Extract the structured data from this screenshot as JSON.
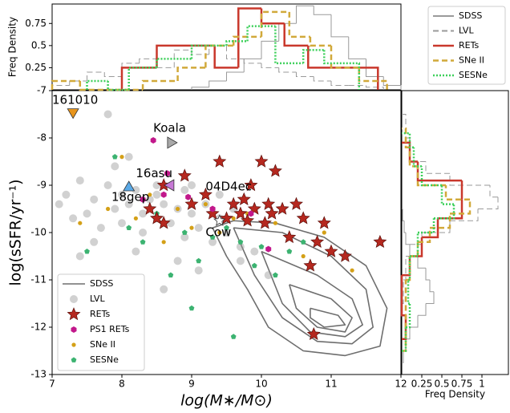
{
  "chart_data": [
    {
      "type": "scatter",
      "x_label": "log(M∗/M⊙)",
      "y_label": "log(sSFR/yr⁻¹)",
      "xlim": [
        7,
        12
      ],
      "ylim": [
        -13,
        -7
      ],
      "xticks": [
        7,
        8,
        9,
        10,
        11,
        12
      ],
      "yticks": [
        -13,
        -12,
        -11,
        -10,
        -9,
        -8,
        -7
      ],
      "legend": "lower left",
      "series": [
        {
          "name": "SDSS",
          "color": "#6e6e6e",
          "marker": "line",
          "contours": [
            {
              "x": [
                9.3,
                9.6,
                10.2,
                10.9,
                11.5,
                11.8,
                11.7,
                11.2,
                10.6,
                10.1,
                9.8,
                9.5,
                9.3
              ],
              "y": [
                -9.9,
                -9.75,
                -9.8,
                -10.1,
                -10.7,
                -11.6,
                -12.4,
                -12.6,
                -12.5,
                -12.0,
                -11.2,
                -10.5,
                -9.9
              ]
            },
            {
              "x": [
                9.6,
                10.3,
                11.0,
                11.5,
                11.6,
                11.3,
                10.8,
                10.3,
                9.9,
                9.6
              ],
              "y": [
                -9.9,
                -10.0,
                -10.5,
                -11.2,
                -12.0,
                -12.35,
                -12.3,
                -11.8,
                -10.9,
                -9.9
              ]
            },
            {
              "x": [
                10.0,
                10.8,
                11.3,
                11.45,
                11.2,
                10.7,
                10.3,
                10.0
              ],
              "y": [
                -10.4,
                -10.9,
                -11.4,
                -11.95,
                -12.2,
                -12.1,
                -11.5,
                -10.4
              ]
            },
            {
              "x": [
                10.4,
                11.0,
                11.3,
                11.2,
                10.8,
                10.5,
                10.4
              ],
              "y": [
                -11.1,
                -11.4,
                -11.8,
                -12.1,
                -12.0,
                -11.6,
                -11.1
              ]
            },
            {
              "x": [
                10.7,
                11.1,
                11.2,
                10.9,
                10.7,
                10.7
              ],
              "y": [
                -11.6,
                -11.75,
                -11.95,
                -12.0,
                -11.8,
                -11.6
              ]
            }
          ]
        },
        {
          "name": "LVL",
          "color": "#9a9a9a",
          "marker": "circle",
          "x": [
            7.2,
            7.4,
            7.5,
            7.6,
            7.7,
            7.8,
            7.9,
            8.0,
            8.0,
            8.1,
            8.2,
            8.3,
            8.3,
            8.4,
            8.5,
            8.5,
            8.6,
            8.7,
            8.8,
            8.9,
            9.0,
            9.1,
            9.2,
            9.3,
            9.4,
            9.5,
            9.6,
            9.7,
            7.3,
            7.6,
            7.9,
            8.2,
            8.5,
            8.8,
            9.1,
            9.4,
            7.8,
            8.1,
            8.9,
            9.7,
            9.9,
            10.1,
            7.4,
            8.6,
            9.0,
            7.1
          ],
          "y": [
            -9.2,
            -8.9,
            -9.6,
            -9.3,
            -9.9,
            -9.0,
            -9.5,
            -9.2,
            -9.8,
            -9.4,
            -9.1,
            -9.6,
            -10.0,
            -9.3,
            -9.7,
            -9.0,
            -9.4,
            -9.8,
            -9.5,
            -10.1,
            -9.6,
            -9.9,
            -9.4,
            -10.2,
            -9.7,
            -10.0,
            -9.5,
            -10.3,
            -9.7,
            -10.2,
            -8.6,
            -10.4,
            -9.2,
            -10.6,
            -10.8,
            -9.2,
            -7.5,
            -8.4,
            -9.1,
            -10.6,
            -10.4,
            -10.9,
            -10.5,
            -11.2,
            -9.0,
            -9.4
          ]
        },
        {
          "name": "RETs",
          "color": "#b5281f",
          "marker": "star",
          "x": [
            8.4,
            8.6,
            8.6,
            8.9,
            9.0,
            9.2,
            9.3,
            9.4,
            9.5,
            9.6,
            9.7,
            9.75,
            9.8,
            9.85,
            9.9,
            10.0,
            10.05,
            10.1,
            10.15,
            10.2,
            10.3,
            10.4,
            10.5,
            10.6,
            10.8,
            10.9,
            11.0,
            11.2,
            11.7,
            10.7,
            10.75,
            8.5
          ],
          "y": [
            -9.5,
            -9.0,
            -9.8,
            -8.8,
            -9.4,
            -9.2,
            -9.6,
            -8.5,
            -9.7,
            -9.4,
            -9.6,
            -9.3,
            -9.75,
            -9.0,
            -9.5,
            -8.5,
            -9.8,
            -9.4,
            -9.6,
            -8.7,
            -9.5,
            -10.1,
            -9.4,
            -9.7,
            -10.2,
            -9.8,
            -10.4,
            -10.5,
            -10.2,
            -10.7,
            -12.15,
            -9.7
          ]
        },
        {
          "name": "PS1 RETs",
          "color": "#c2188b",
          "marker": "hexagon",
          "x": [
            8.45,
            8.65,
            8.6,
            8.95,
            9.3,
            9.85,
            10.1,
            8.3
          ],
          "y": [
            -8.05,
            -8.75,
            -9.2,
            -9.25,
            -9.5,
            -9.6,
            -10.35,
            -9.3
          ]
        },
        {
          "name": "SNe II",
          "color": "#d4a017",
          "marker": "dot",
          "x": [
            7.4,
            7.8,
            8.0,
            8.2,
            8.4,
            8.6,
            8.8,
            9.0,
            9.2,
            9.4,
            9.6,
            9.8,
            10.0,
            10.2,
            10.4,
            10.6,
            10.9,
            11.3
          ],
          "y": [
            -9.8,
            -9.5,
            -8.4,
            -9.7,
            -9.2,
            -10.2,
            -9.5,
            -9.9,
            -9.4,
            -10.0,
            -9.7,
            -9.6,
            -10.3,
            -9.8,
            -10.1,
            -10.5,
            -10.0,
            -10.8
          ]
        },
        {
          "name": "SESNe",
          "color": "#3cb371",
          "marker": "pentagon",
          "x": [
            7.5,
            7.9,
            8.1,
            8.3,
            8.5,
            8.7,
            8.9,
            9.1,
            9.3,
            9.5,
            9.7,
            9.9,
            10.0,
            10.2,
            10.4,
            10.6,
            9.0,
            9.6
          ],
          "y": [
            -10.4,
            -8.4,
            -9.9,
            -10.2,
            -9.6,
            -10.9,
            -10.0,
            -10.6,
            -10.1,
            -9.9,
            -10.2,
            -10.7,
            -10.3,
            -10.9,
            -10.4,
            -10.2,
            -11.6,
            -12.2
          ]
        }
      ],
      "events": [
        {
          "x": 7.3,
          "y": -7.45,
          "color": "#e8951c",
          "shape": "down"
        },
        {
          "x": 8.7,
          "y": -8.1,
          "color": "#a8a8a8",
          "shape": "right"
        },
        {
          "x": 8.7,
          "y": -9.0,
          "color": "#c77ad6",
          "shape": "left"
        },
        {
          "x": 8.1,
          "y": -9.05,
          "color": "#5aa9e6",
          "shape": "up"
        },
        {
          "x": 9.4,
          "y": -9.75,
          "color": "#ffffff",
          "shape": "star"
        }
      ],
      "annotations": [
        {
          "text": "161010",
          "x": 7.0,
          "y": -7.2
        },
        {
          "text": "Koala",
          "x": 8.45,
          "y": -7.8
        },
        {
          "text": "16asu",
          "x": 8.2,
          "y": -8.75
        },
        {
          "text": "18gep",
          "x": 7.85,
          "y": -9.25
        },
        {
          "text": "04D4ec",
          "x": 9.2,
          "y": -9.03
        },
        {
          "text": "Cow",
          "x": 9.2,
          "y": -10.0
        }
      ]
    },
    {
      "type": "marginal_histogram",
      "legend": "upper right",
      "top": {
        "y_label": "Freq Density",
        "ylim": [
          0,
          0.97
        ],
        "yticks": [
          0.25,
          0.5,
          0.75
        ]
      },
      "right": {
        "x_label": "Freq Density",
        "xlim": [
          0,
          1.33
        ],
        "xticks": [
          0.25,
          0.5,
          0.75,
          1
        ]
      },
      "series": [
        {
          "name": "SDSS",
          "color": "#9a9a9a",
          "dash": "solid",
          "top": {
            "bins": [
              9.0,
              9.25,
              9.5,
              9.75,
              10.0,
              10.25,
              10.5,
              10.75,
              11.0,
              11.25,
              11.5,
              11.75,
              12.0
            ],
            "counts": [
              0.03,
              0.1,
              0.2,
              0.35,
              0.55,
              0.75,
              0.95,
              0.85,
              0.6,
              0.35,
              0.15,
              0.05
            ]
          },
          "right": {
            "bins": [
              -12.75,
              -12.5,
              -12.25,
              -12,
              -11.75,
              -11.5,
              -11.25,
              -11,
              -10.75,
              -10.5,
              -10.25,
              -10,
              -9.75,
              -9.5
            ],
            "counts": [
              0.02,
              0.05,
              0.1,
              0.2,
              0.3,
              0.4,
              0.35,
              0.3,
              0.2,
              0.1,
              0.05,
              0.03,
              0.01
            ]
          }
        },
        {
          "name": "LVL",
          "color": "#9a9a9a",
          "dash": "dashed",
          "top": {
            "bins": [
              7.0,
              7.25,
              7.5,
              7.75,
              8.0,
              8.25,
              8.5,
              8.75,
              9.0,
              9.25,
              9.5,
              9.75,
              10.0,
              10.25,
              10.5,
              10.75,
              11.0,
              11.25,
              11.5,
              11.75
            ],
            "counts": [
              0.05,
              0.1,
              0.2,
              0.15,
              0.3,
              0.35,
              0.25,
              0.45,
              0.4,
              0.5,
              0.35,
              0.3,
              0.25,
              0.2,
              0.15,
              0.1,
              0.05,
              0.05,
              0.03
            ]
          },
          "right": {
            "bins": [
              -11.5,
              -11,
              -10.5,
              -10.25,
              -10,
              -9.75,
              -9.5,
              -9.25,
              -9,
              -8.75,
              -8.5,
              -8,
              -7.5
            ],
            "counts": [
              0.02,
              0.05,
              0.1,
              0.25,
              0.6,
              0.95,
              1.2,
              1.1,
              0.6,
              0.3,
              0.1,
              0.05
            ]
          }
        },
        {
          "name": "RETs",
          "color": "#c9382c",
          "dash": "solid",
          "top": {
            "bins": [
              8.0,
              8.5,
              9.0,
              9.33,
              9.67,
              10.0,
              10.33,
              10.67,
              11.0,
              11.67
            ],
            "counts": [
              0.25,
              0.5,
              0.5,
              0.25,
              0.92,
              0.75,
              0.5,
              0.25,
              0.25
            ]
          },
          "right": {
            "bins": [
              -12.25,
              -11.75,
              -10.9,
              -10.5,
              -10.1,
              -9.7,
              -9.3,
              -8.9,
              -8.5,
              -8.1
            ],
            "counts": [
              0.05,
              0,
              0.1,
              0.25,
              0.45,
              0.75,
              0.75,
              0.2,
              0.1
            ]
          }
        },
        {
          "name": "SNe II",
          "color": "#d1a93a",
          "dash": "dashed",
          "top": {
            "bins": [
              7.0,
              7.4,
              8.3,
              8.8,
              9.2,
              9.6,
              10.0,
              10.4,
              10.7,
              11.0,
              11.4,
              11.8
            ],
            "counts": [
              0.1,
              0,
              0.1,
              0.25,
              0.5,
              0.6,
              0.88,
              0.6,
              0.5,
              0.25,
              0.1
            ]
          },
          "right": {
            "bins": [
              -12.5,
              -11,
              -10.5,
              -10.2,
              -9.9,
              -9.6,
              -9.3,
              -9.0,
              -8.6,
              -8.2,
              -7.8
            ],
            "counts": [
              0.05,
              0.1,
              0.2,
              0.35,
              0.6,
              0.85,
              0.55,
              0.2,
              0.1,
              0.05
            ]
          }
        },
        {
          "name": "SESNe",
          "color": "#3dd05a",
          "dash": "dotted",
          "top": {
            "bins": [
              7.5,
              7.8,
              8.1,
              8.5,
              9.0,
              9.5,
              9.8,
              10.2,
              10.6,
              10.9,
              11.4
            ],
            "counts": [
              0.1,
              0.0,
              0.25,
              0.35,
              0.5,
              0.55,
              0.72,
              0.3,
              0.45,
              0.3
            ]
          },
          "right": {
            "bins": [
              -12.5,
              -12,
              -11.5,
              -11,
              -10.5,
              -10,
              -9.7,
              -9.4,
              -9.0,
              -8.6,
              -8.2,
              -7.9
            ],
            "counts": [
              0.05,
              0.1,
              0.08,
              0.1,
              0.2,
              0.4,
              0.65,
              0.5,
              0.25,
              0.15,
              0.1
            ]
          }
        }
      ]
    }
  ]
}
